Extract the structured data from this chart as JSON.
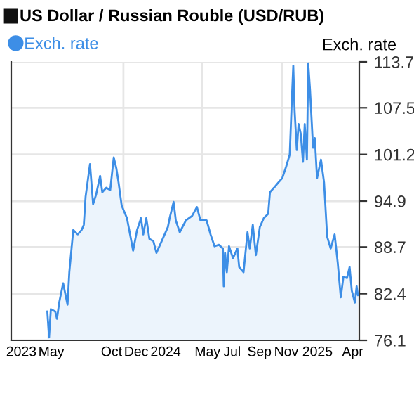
{
  "chart_data": {
    "type": "area",
    "title": "US Dollar / Russian Rouble (USD/RUB)",
    "ylabel": "Exch. rate",
    "x": [
      "2023-05-22",
      "2023-05-26",
      "2023-05-30",
      "2023-06-09",
      "2023-06-13",
      "2023-06-18",
      "2023-06-27",
      "2023-07-07",
      "2023-07-11",
      "2023-07-20",
      "2023-07-30",
      "2023-08-08",
      "2023-08-13",
      "2023-08-17",
      "2023-08-27",
      "2023-09-03",
      "2023-09-10",
      "2023-09-19",
      "2023-09-24",
      "2023-10-03",
      "2023-10-12",
      "2023-10-20",
      "2023-10-26",
      "2023-10-31",
      "2023-11-07",
      "2023-11-19",
      "2023-11-28",
      "2023-12-03",
      "2023-12-12",
      "2023-12-21",
      "2023-12-26",
      "2024-01-02",
      "2024-01-09",
      "2024-01-18",
      "2024-01-25",
      "2024-02-06",
      "2024-02-20",
      "2024-02-24",
      "2024-03-04",
      "2024-03-09",
      "2024-03-18",
      "2024-04-01",
      "2024-04-15",
      "2024-04-26",
      "2024-05-04",
      "2024-05-18",
      "2024-05-27",
      "2024-06-05",
      "2024-06-15",
      "2024-06-24",
      "2024-06-26",
      "2024-06-29",
      "2024-07-03",
      "2024-07-08",
      "2024-07-17",
      "2024-07-27",
      "2024-07-31",
      "2024-08-10",
      "2024-08-19",
      "2024-08-24",
      "2024-08-31",
      "2024-09-07",
      "2024-09-16",
      "2024-09-25",
      "2024-10-05",
      "2024-10-09",
      "2024-10-18",
      "2024-10-28",
      "2024-11-06",
      "2024-11-15",
      "2024-11-23",
      "2024-11-27",
      "2024-12-01",
      "2024-12-04",
      "2024-12-09",
      "2024-12-13",
      "2024-12-18",
      "2024-12-23",
      "2024-12-27",
      "2025-01-01",
      "2025-01-04",
      "2025-01-08",
      "2025-01-15",
      "2025-01-19",
      "2025-01-24",
      "2025-02-02",
      "2025-02-09",
      "2025-02-16",
      "2025-02-24",
      "2025-03-05",
      "2025-03-12",
      "2025-03-19",
      "2025-03-25",
      "2025-04-02",
      "2025-04-08",
      "2025-04-13",
      "2025-04-20",
      "2025-04-24",
      "2025-04-27"
    ],
    "series": [
      {
        "name": "Exch. rate",
        "color": "#3d8ee6",
        "values": [
          80.0,
          76.5,
          80.3,
          80.0,
          79.0,
          81.2,
          83.8,
          80.9,
          85.3,
          91.0,
          90.4,
          91.0,
          91.7,
          95.5,
          99.9,
          94.5,
          95.8,
          98.3,
          96.1,
          96.7,
          96.4,
          100.8,
          99.3,
          97.4,
          94.3,
          92.6,
          89.8,
          88.2,
          91.0,
          92.6,
          90.4,
          92.6,
          89.8,
          89.5,
          87.9,
          89.5,
          91.4,
          92.6,
          94.8,
          92.3,
          90.7,
          92.3,
          92.9,
          94.1,
          92.3,
          92.3,
          90.4,
          88.8,
          89.0,
          88.5,
          83.4,
          87.9,
          85.3,
          88.8,
          87.2,
          88.5,
          86.0,
          85.3,
          90.7,
          88.5,
          91.7,
          87.6,
          91.4,
          92.6,
          93.2,
          96.1,
          96.7,
          97.4,
          98.0,
          99.6,
          101.2,
          107.5,
          113.2,
          107.2,
          101.8,
          105.3,
          104.0,
          100.2,
          105.3,
          100.5,
          113.5,
          110.0,
          102.1,
          103.4,
          98.0,
          100.5,
          97.4,
          90.1,
          88.5,
          90.4,
          86.6,
          81.9,
          84.7,
          84.5,
          86.0,
          82.8,
          81.2,
          83.4,
          82.2
        ]
      }
    ],
    "xlim": [
      "2023-03-01",
      "2025-04-30"
    ],
    "xticks": [
      {
        "value": "2023-03-24",
        "label": "2023"
      },
      {
        "value": "2023-05-31",
        "label": "May"
      },
      {
        "value": "2023-10-15",
        "label": "Oct"
      },
      {
        "value": "2023-12-10",
        "label": "Dec"
      },
      {
        "value": "2024-02-15",
        "label": "2024"
      },
      {
        "value": "2024-05-20",
        "label": "May"
      },
      {
        "value": "2024-07-15",
        "label": "Jul"
      },
      {
        "value": "2024-09-15",
        "label": "Sep"
      },
      {
        "value": "2024-11-15",
        "label": "Nov"
      },
      {
        "value": "2025-01-25",
        "label": "2025"
      },
      {
        "value": "2025-04-15",
        "label": "Apr"
      }
    ],
    "ylim": [
      76.1,
      113.7
    ],
    "yticks": [
      76.1,
      82.4,
      88.7,
      94.9,
      101.2,
      107.5,
      113.7
    ],
    "ref_lines": [
      {
        "axis": "x",
        "value": "2023-11-11",
        "color": "#e6e6e6"
      },
      {
        "axis": "x",
        "value": "2024-05-08",
        "color": "#e6e6e6"
      },
      {
        "axis": "x",
        "value": "2024-11-05",
        "color": "#e6e6e6"
      }
    ],
    "grid": "y",
    "legend": "top left",
    "marker": "none",
    "line_style": "solid"
  }
}
